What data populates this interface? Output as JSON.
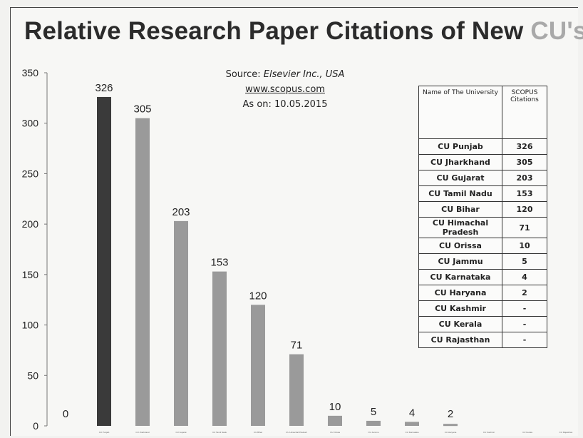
{
  "title": {
    "main": "Relative Research Paper Citations of New",
    "accent": "CU's"
  },
  "source": {
    "prefix": "Source: ",
    "publisher": "Elsevier Inc., USA",
    "url": "www.scopus.com",
    "date": "As on: 10.05.2015"
  },
  "table": {
    "headers": [
      "Name of The University",
      "SCOPUS Citations"
    ],
    "rows": [
      [
        "CU Punjab",
        "326"
      ],
      [
        "CU Jharkhand",
        "305"
      ],
      [
        "CU Gujarat",
        "203"
      ],
      [
        "CU Tamil Nadu",
        "153"
      ],
      [
        "CU Bihar",
        "120"
      ],
      [
        "CU Himachal Pradesh",
        "71"
      ],
      [
        "CU Orissa",
        "10"
      ],
      [
        "CU Jammu",
        "5"
      ],
      [
        "CU Karnataka",
        "4"
      ],
      [
        "CU Haryana",
        "2"
      ],
      [
        "CU Kashmir",
        "-"
      ],
      [
        "CU Kerala",
        "-"
      ],
      [
        "CU Rajasthan",
        "-"
      ]
    ]
  },
  "chart_data": {
    "type": "bar",
    "title": "Relative Research Paper Citations of New CU's",
    "categories": [
      "",
      "CU Punjab",
      "CU Jharkhand",
      "CU Gujarat",
      "CU Tamil Nadu",
      "CU Bihar",
      "CU Himachal Pradesh",
      "CU Orissa",
      "CU Jammu",
      "CU Karnataka",
      "CU Haryana",
      "CU Kashmir",
      "CU Kerala",
      "CU Rajasthan"
    ],
    "values": [
      0,
      326,
      305,
      203,
      153,
      120,
      71,
      10,
      5,
      4,
      2,
      0,
      0,
      0
    ],
    "data_labels": [
      "0",
      "326",
      "305",
      "203",
      "153",
      "120",
      "71",
      "10",
      "5",
      "4",
      "2",
      "",
      "",
      ""
    ],
    "yticks": [
      0,
      50,
      100,
      150,
      200,
      250,
      300,
      350
    ],
    "ylim": [
      0,
      350
    ],
    "xlabel": "",
    "ylabel": "",
    "grid": false,
    "colors": {
      "highlight": "#3a3a3a",
      "bar": "#9a9a9a",
      "text": "#222222"
    }
  }
}
